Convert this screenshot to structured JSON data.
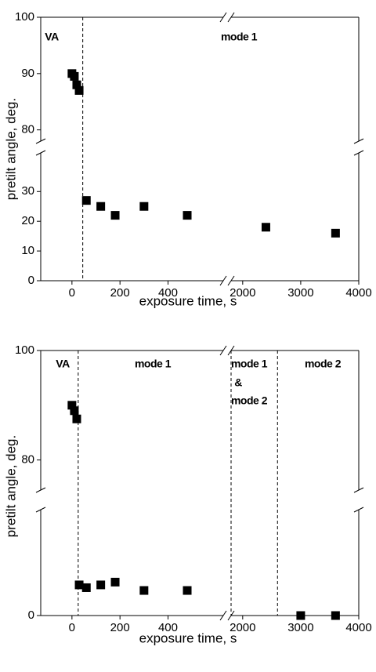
{
  "chart_data": [
    {
      "type": "scatter",
      "xlabel": "exposure time, s",
      "ylabel": "pretilt angle, deg.",
      "xlim": [
        [
          -130,
          630
        ],
        [
          1800,
          4000
        ]
      ],
      "xticks": [
        [
          0,
          200,
          400
        ],
        [
          2000,
          3000,
          4000
        ]
      ],
      "ylim": [
        [
          0,
          43
        ],
        [
          78,
          100
        ]
      ],
      "yticks": [
        [
          0,
          10,
          20,
          30
        ],
        [
          80,
          90,
          100
        ]
      ],
      "x": [
        0,
        10,
        20,
        30,
        60,
        120,
        180,
        300,
        480,
        2400,
        3600
      ],
      "y": [
        90,
        89.5,
        88,
        87,
        27,
        25,
        22,
        25,
        22,
        18,
        16
      ],
      "color": "#000000",
      "vlines": [
        45
      ],
      "annotations": [
        [
          "VA"
        ],
        [
          "mode 1"
        ]
      ]
    },
    {
      "type": "scatter",
      "xlabel": "exposure time, s",
      "ylabel": "pretilt angle, deg.",
      "xlim": [
        [
          -130,
          630
        ],
        [
          1800,
          4000
        ]
      ],
      "xticks": [
        [
          0,
          200,
          400
        ],
        [
          2000,
          3000,
          4000
        ]
      ],
      "ylim": [
        [
          0,
          19
        ],
        [
          74.5,
          100
        ]
      ],
      "yticks": [
        [
          0
        ],
        [
          80,
          100
        ]
      ],
      "x": [
        0,
        10,
        20,
        30,
        60,
        120,
        180,
        300,
        480,
        3000,
        3600
      ],
      "y": [
        90,
        89,
        87.5,
        5.5,
        5,
        5.5,
        6,
        4.5,
        4.5,
        0,
        0
      ],
      "color": "#000000",
      "vlines": [
        26,
        1800,
        2600
      ],
      "annotations": [
        [
          "VA"
        ],
        [
          "mode 1"
        ],
        [
          "mode 1",
          "&",
          "mode 2"
        ],
        [
          "mode 2"
        ]
      ]
    }
  ]
}
